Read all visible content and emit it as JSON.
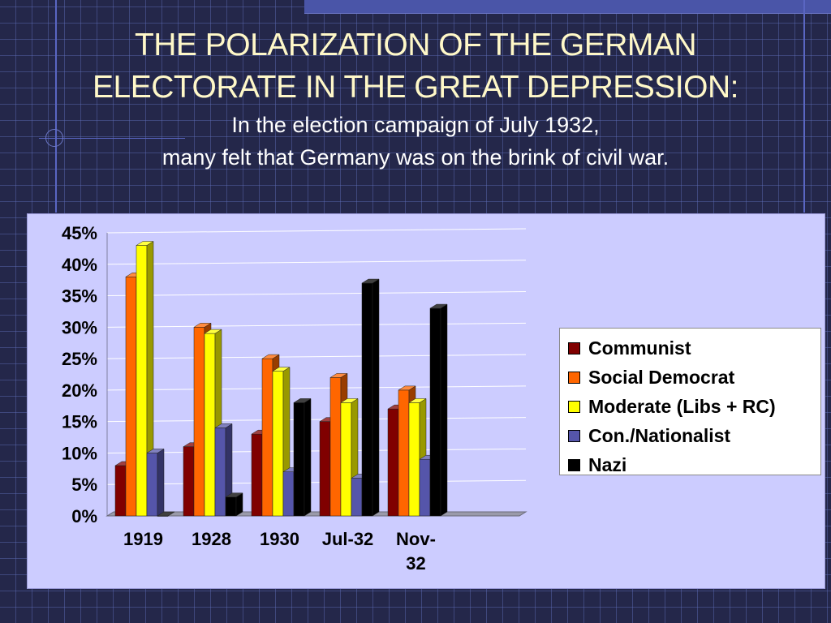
{
  "slide": {
    "title_line1": "THE POLARIZATION OF THE GERMAN",
    "title_line2": "ELECTORATE IN THE GREAT DEPRESSION:",
    "subtitle_line1": "In the election campaign of July 1932,",
    "subtitle_line2": "many felt that Germany was on the brink of civil war."
  },
  "chart_data": {
    "type": "bar",
    "title": "",
    "xlabel": "",
    "ylabel": "",
    "categories": [
      "1919",
      "1928",
      "1930",
      "Jul-32",
      "Nov-32"
    ],
    "y_ticks": [
      "0%",
      "5%",
      "10%",
      "15%",
      "20%",
      "25%",
      "30%",
      "35%",
      "40%",
      "45%"
    ],
    "ylim": [
      0,
      45
    ],
    "unit": "%",
    "grid": true,
    "three_d": true,
    "legend_position": "right",
    "series": [
      {
        "name": "Communist",
        "color": "#800000",
        "values": [
          8,
          11,
          13,
          15,
          17
        ]
      },
      {
        "name": "Social Democrat",
        "color": "#ff6600",
        "values": [
          38,
          30,
          25,
          22,
          20
        ]
      },
      {
        "name": "Moderate (Libs + RC)",
        "color": "#ffff00",
        "values": [
          43,
          29,
          23,
          18,
          18
        ]
      },
      {
        "name": "Con./Nationalist",
        "color": "#5555aa",
        "values": [
          10,
          14,
          7,
          6,
          9
        ]
      },
      {
        "name": "Nazi",
        "color": "#000000",
        "values": [
          0,
          3,
          18,
          37,
          33
        ]
      }
    ]
  }
}
